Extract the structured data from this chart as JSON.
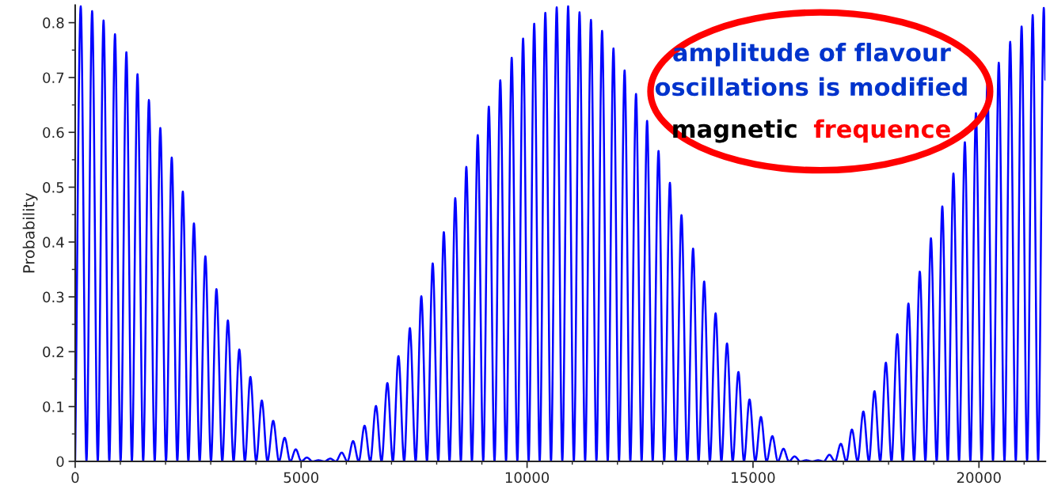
{
  "chart_data": {
    "type": "line",
    "ylabel": "Probability",
    "xlim": [
      0,
      21470
    ],
    "ylim": [
      0,
      0.832
    ],
    "xticks": [
      0,
      5000,
      10000,
      15000,
      20000
    ],
    "yticks": [
      0,
      0.1,
      0.2,
      0.3,
      0.4,
      0.5,
      0.6,
      0.7,
      0.8
    ],
    "grid": false,
    "marker": "none",
    "line_style": "solid",
    "annotations": [
      "amplitude of flavour\noscillations is modified",
      "magnetic",
      "frequence"
    ],
    "series": [
      {
        "color": "#0000ff",
        "x": [
          0,
          123,
          250,
          375,
          500,
          628,
          755,
          881,
          1005,
          1133,
          1255,
          1379,
          1505,
          1632,
          1760,
          1884,
          2010,
          2137,
          2260,
          2382,
          2505,
          2628,
          2755,
          2881,
          3005,
          3126,
          3255,
          3379,
          3505,
          3632,
          3755,
          3877,
          4005,
          4130,
          4255,
          4382,
          4510,
          4635,
          4760,
          4881,
          5005,
          5126,
          5255,
          5386,
          5515,
          5646,
          5770,
          5898,
          6025,
          6150,
          6275,
          6404,
          6530,
          6656,
          6780,
          6909,
          7030,
          7154,
          7280,
          7407,
          7535,
          7660,
          7785,
          7912,
          8035,
          8158,
          8285,
          8411,
          8535,
          8656,
          8780,
          8909,
          9030,
          9154,
          9280,
          9407,
          9535,
          9660,
          9785,
          9912,
          10035,
          10158,
          10280,
          10404,
          10530,
          10656,
          10780,
          10909,
          11035,
          11161,
          11285,
          11414,
          11535,
          11660,
          11785,
          11912,
          12035,
          12158,
          12285,
          12411,
          12535,
          12656,
          12780,
          12909,
          13035,
          13161,
          13290,
          13417,
          13545,
          13674,
          13795,
          13919,
          14045,
          14172,
          14300,
          14425,
          14550,
          14677,
          14800,
          14923,
          15050,
          15175,
          15300,
          15428,
          15550,
          15674,
          15795,
          15919,
          16050,
          16180,
          16310,
          16439,
          16565,
          16691,
          16815,
          16944,
          17065,
          17189,
          17315,
          17442,
          17565,
          17688,
          17815,
          17940,
          18065,
          18193,
          18315,
          18439,
          18565,
          18691,
          18815,
          18937,
          19065,
          19189,
          19310,
          19435,
          19560,
          19688,
          19810,
          19933,
          20060,
          20186,
          20310,
          20439,
          20565,
          20691,
          20815,
          20944,
          21065,
          21189,
          21310,
          21435,
          21470
        ],
        "values": [
          0,
          0.83,
          0,
          0.821,
          0,
          0.804,
          0,
          0.779,
          0,
          0.746,
          0,
          0.706,
          0,
          0.659,
          0,
          0.608,
          0,
          0.554,
          0,
          0.492,
          0,
          0.434,
          0,
          0.374,
          0,
          0.314,
          0,
          0.257,
          0,
          0.204,
          0,
          0.154,
          0,
          0.111,
          0,
          0.074,
          0,
          0.043,
          0,
          0.022,
          0,
          0.007,
          0,
          0.002,
          0,
          0.005,
          0,
          0.016,
          0,
          0.037,
          0,
          0.065,
          0,
          0.101,
          0,
          0.143,
          0,
          0.192,
          0,
          0.243,
          0,
          0.301,
          0,
          0.361,
          0,
          0.418,
          0,
          0.48,
          0,
          0.537,
          0,
          0.595,
          0,
          0.647,
          0,
          0.695,
          0,
          0.736,
          0,
          0.771,
          0,
          0.798,
          0,
          0.818,
          0,
          0.828,
          0,
          0.83,
          0,
          0.819,
          0,
          0.805,
          0,
          0.785,
          0,
          0.753,
          0,
          0.713,
          0,
          0.67,
          0,
          0.621,
          0,
          0.566,
          0,
          0.508,
          0,
          0.449,
          0,
          0.388,
          0,
          0.328,
          0,
          0.27,
          0,
          0.215,
          0,
          0.163,
          0,
          0.113,
          0,
          0.081,
          0,
          0.046,
          0,
          0.023,
          0,
          0.009,
          0,
          0.002,
          0,
          0.002,
          0,
          0.012,
          0,
          0.032,
          0,
          0.058,
          0,
          0.091,
          0,
          0.128,
          0,
          0.18,
          0,
          0.232,
          0,
          0.288,
          0,
          0.346,
          0,
          0.407,
          0,
          0.465,
          0,
          0.525,
          0,
          0.582,
          0,
          0.635,
          0,
          0.687,
          0,
          0.727,
          0,
          0.765,
          0,
          0.793,
          0,
          0.814,
          0,
          0.827,
          0.696
        ]
      }
    ]
  }
}
